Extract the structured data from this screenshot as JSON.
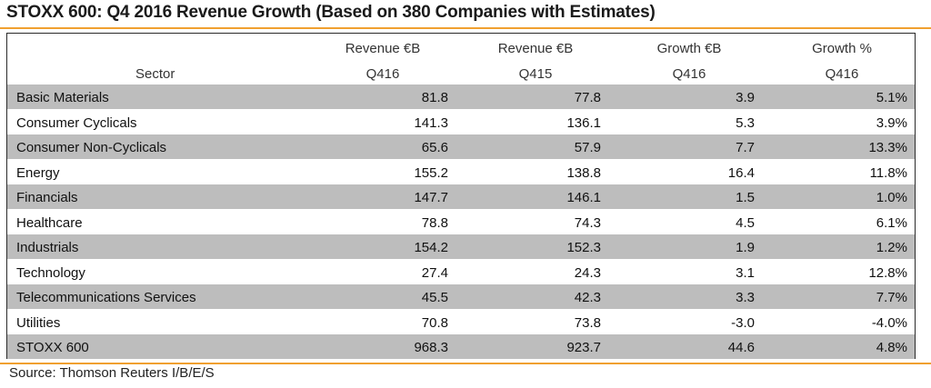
{
  "title": "STOXX 600: Q4 2016 Revenue Growth (Based on 380 Companies with Estimates)",
  "colors": {
    "accent": "#f0a030",
    "stripe": "#bdbdbd",
    "total": "#bdbdbd"
  },
  "source": "Source: Thomson Reuters I/B/E/S",
  "chart_data": {
    "type": "table",
    "columns": [
      {
        "line1": "",
        "line2": "Sector"
      },
      {
        "line1": "Revenue €B",
        "line2": "Q416"
      },
      {
        "line1": "Revenue €B",
        "line2": "Q415"
      },
      {
        "line1": "Growth €B",
        "line2": "Q416"
      },
      {
        "line1": "Growth %",
        "line2": "Q416"
      }
    ],
    "rows": [
      {
        "sector": "Basic Materials",
        "rev_q416": "81.8",
        "rev_q415": "77.8",
        "growth_eur": "3.9",
        "growth_pct": "5.1%"
      },
      {
        "sector": "Consumer Cyclicals",
        "rev_q416": "141.3",
        "rev_q415": "136.1",
        "growth_eur": "5.3",
        "growth_pct": "3.9%"
      },
      {
        "sector": "Consumer Non-Cyclicals",
        "rev_q416": "65.6",
        "rev_q415": "57.9",
        "growth_eur": "7.7",
        "growth_pct": "13.3%"
      },
      {
        "sector": "Energy",
        "rev_q416": "155.2",
        "rev_q415": "138.8",
        "growth_eur": "16.4",
        "growth_pct": "11.8%"
      },
      {
        "sector": "Financials",
        "rev_q416": "147.7",
        "rev_q415": "146.1",
        "growth_eur": "1.5",
        "growth_pct": "1.0%"
      },
      {
        "sector": "Healthcare",
        "rev_q416": "78.8",
        "rev_q415": "74.3",
        "growth_eur": "4.5",
        "growth_pct": "6.1%"
      },
      {
        "sector": "Industrials",
        "rev_q416": "154.2",
        "rev_q415": "152.3",
        "growth_eur": "1.9",
        "growth_pct": "1.2%"
      },
      {
        "sector": "Technology",
        "rev_q416": "27.4",
        "rev_q415": "24.3",
        "growth_eur": "3.1",
        "growth_pct": "12.8%"
      },
      {
        "sector": "Telecommunications Services",
        "rev_q416": "45.5",
        "rev_q415": "42.3",
        "growth_eur": "3.3",
        "growth_pct": "7.7%"
      },
      {
        "sector": "Utilities",
        "rev_q416": "70.8",
        "rev_q415": "73.8",
        "growth_eur": "-3.0",
        "growth_pct": "-4.0%"
      }
    ],
    "total": {
      "sector": "STOXX 600",
      "rev_q416": "968.3",
      "rev_q415": "923.7",
      "growth_eur": "44.6",
      "growth_pct": "4.8%"
    }
  }
}
